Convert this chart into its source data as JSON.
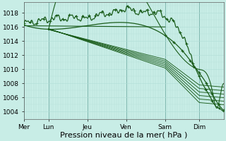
{
  "title": "Pression niveau de la mer( hPa )",
  "bg_color": "#c8ede6",
  "grid_minor_color": "#b0ddd6",
  "grid_major_color": "#80b8b0",
  "line_color": "#1a5c1a",
  "ylim": [
    1003.0,
    1019.5
  ],
  "yticks": [
    1004,
    1006,
    1008,
    1010,
    1012,
    1014,
    1016,
    1018
  ],
  "days": [
    "Mer",
    "Lun",
    "Jeu",
    "Ven",
    "Sam",
    "Dim"
  ],
  "day_positions": [
    0,
    30,
    78,
    126,
    174,
    216
  ],
  "total_hours": 246,
  "tick_fontsize": 6.5,
  "xlabel_fontsize": 8
}
